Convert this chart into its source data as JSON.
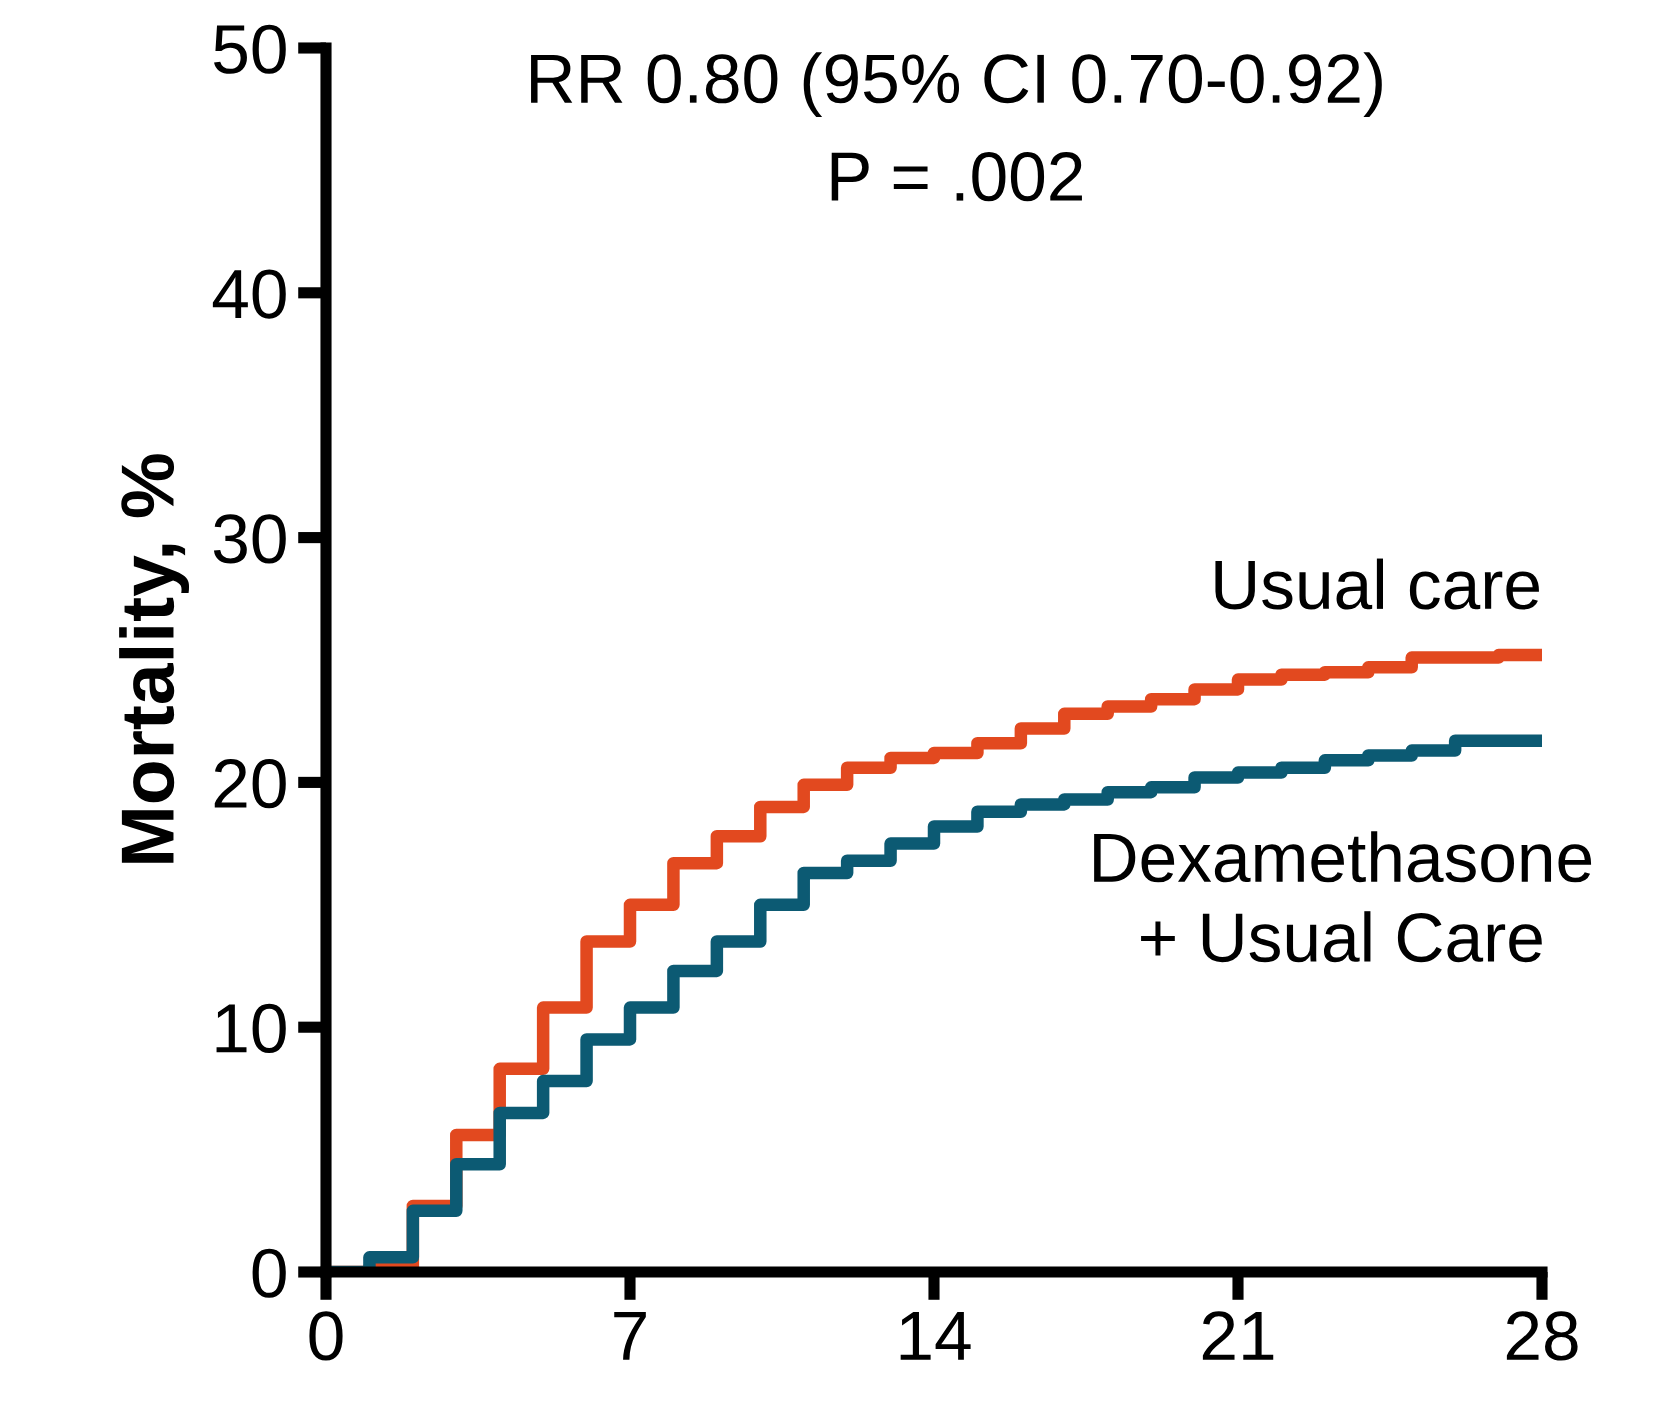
{
  "chart_data": {
    "type": "step",
    "ylabel": "Mortality, %",
    "xlim": [
      0,
      28
    ],
    "ylim": [
      0,
      50
    ],
    "xticks": [
      0,
      7,
      14,
      21,
      28
    ],
    "yticks": [
      0,
      10,
      20,
      30,
      40,
      50
    ],
    "grid": false,
    "legend": false,
    "line_style": "solid",
    "marker": "none",
    "x": [
      0,
      1,
      2,
      3,
      4,
      5,
      6,
      7,
      8,
      9,
      10,
      11,
      12,
      13,
      14,
      15,
      16,
      17,
      18,
      19,
      20,
      21,
      22,
      23,
      24,
      25,
      26,
      27,
      28
    ],
    "series": [
      {
        "name": "Usual care",
        "color": "#e2491f",
        "values": [
          0,
          0.2,
          2.7,
          5.6,
          8.3,
          10.8,
          13.5,
          15.0,
          16.7,
          17.8,
          19.0,
          19.9,
          20.6,
          21.0,
          21.2,
          21.6,
          22.2,
          22.8,
          23.1,
          23.4,
          23.8,
          24.2,
          24.4,
          24.5,
          24.7,
          25.1,
          25.1,
          25.2,
          25.2
        ]
      },
      {
        "name": "Dexamethasone\n+ Usual Care",
        "color": "#0c5a73",
        "values": [
          0,
          0.6,
          2.5,
          4.4,
          6.5,
          7.8,
          9.5,
          10.8,
          12.3,
          13.5,
          15.0,
          16.3,
          16.8,
          17.5,
          18.2,
          18.8,
          19.1,
          19.3,
          19.6,
          19.8,
          20.2,
          20.4,
          20.6,
          20.9,
          21.1,
          21.3,
          21.7,
          21.7,
          21.7
        ]
      }
    ],
    "annotations": [
      "RR 0.80 (95% CI 0.70-0.92)",
      "P = .002"
    ]
  }
}
